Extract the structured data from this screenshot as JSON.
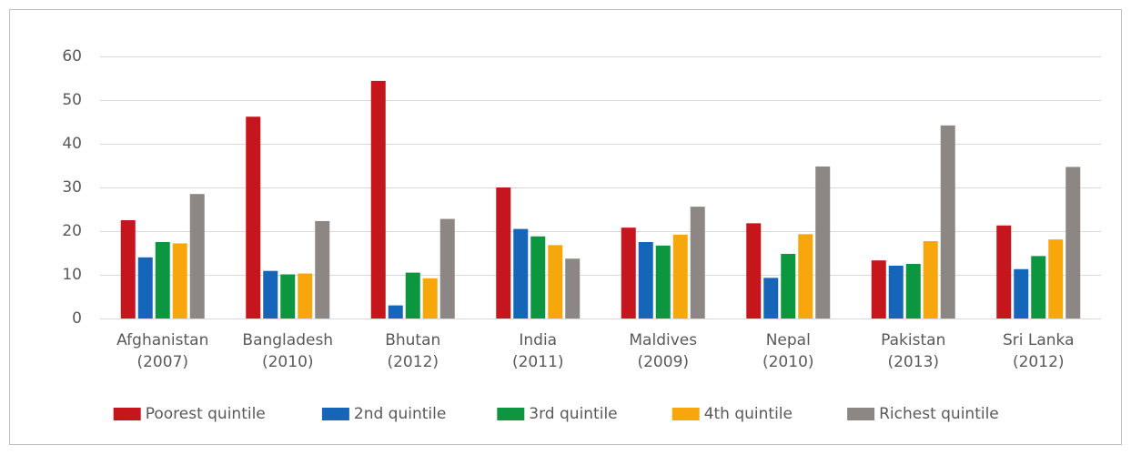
{
  "chart_data": {
    "type": "bar",
    "categories": [
      "Afghanistan\n(2007)",
      "Bangladesh\n(2010)",
      "Bhutan\n(2012)",
      "India\n(2011)",
      "Maldives\n(2009)",
      "Nepal\n(2010)",
      "Pakistan\n(2013)",
      "Sri Lanka\n(2012)"
    ],
    "series": [
      {
        "name": "Poorest quintile",
        "color": "#c5161d",
        "values": [
          22.5,
          46.2,
          54.4,
          30,
          20.8,
          21.8,
          13.3,
          21.3
        ]
      },
      {
        "name": "2nd quintile",
        "color": "#1565b8",
        "values": [
          14,
          10.9,
          3,
          20.5,
          17.5,
          9.3,
          12.1,
          11.3
        ]
      },
      {
        "name": "3rd quintile",
        "color": "#0c9640",
        "values": [
          17.5,
          10.1,
          10.5,
          18.8,
          16.7,
          14.8,
          12.5,
          14.3
        ]
      },
      {
        "name": "4th quintile",
        "color": "#f7a70c",
        "values": [
          17.2,
          10.3,
          9.2,
          16.8,
          19.2,
          19.3,
          17.7,
          18.1
        ]
      },
      {
        "name": "Richest quintile",
        "color": "#8c8785",
        "values": [
          28.5,
          22.3,
          22.8,
          13.7,
          25.6,
          34.8,
          44.2,
          34.7
        ]
      }
    ],
    "ylim": [
      0,
      60
    ],
    "yticks": [
      0,
      10,
      20,
      30,
      40,
      50,
      60
    ],
    "grid": true,
    "legend": "bottom"
  }
}
